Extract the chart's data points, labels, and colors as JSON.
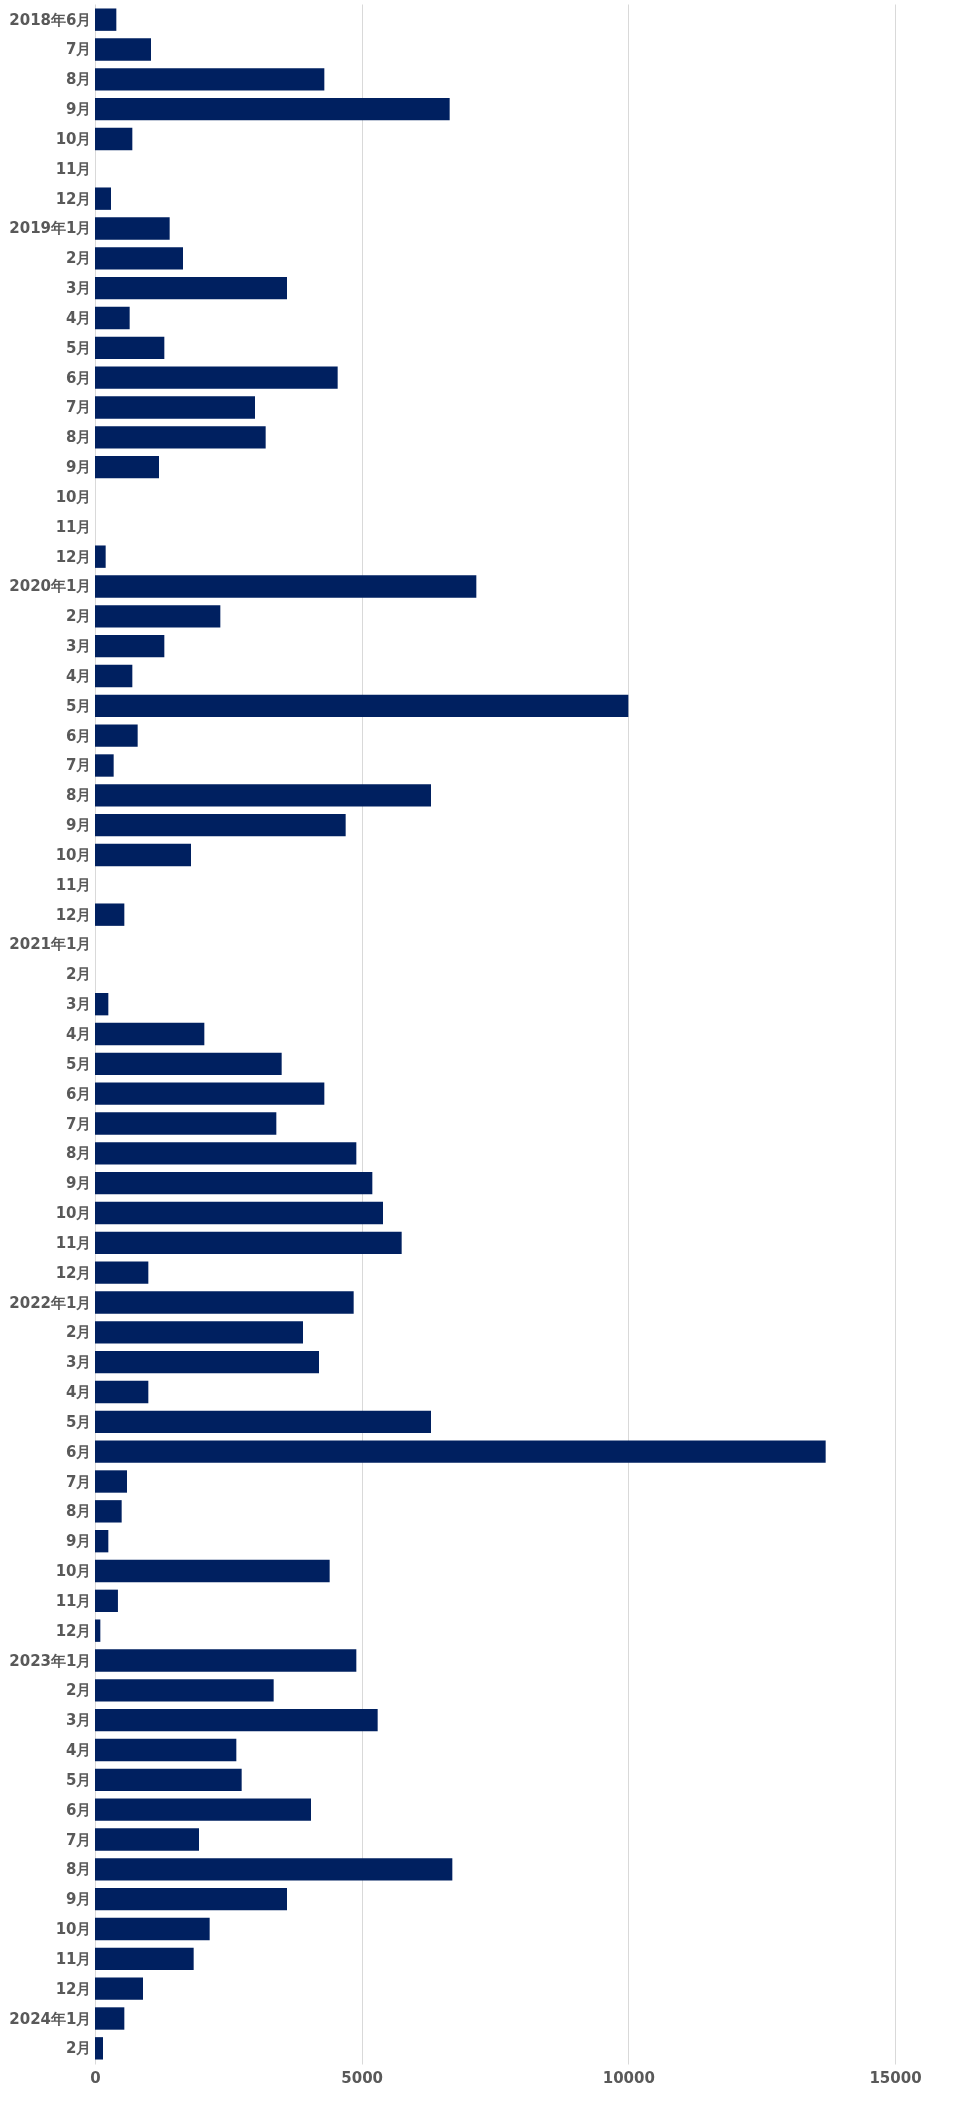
{
  "chart_data": {
    "type": "bar",
    "orientation": "horizontal",
    "categories": [
      "2018年6月",
      "7月",
      "8月",
      "9月",
      "10月",
      "11月",
      "12月",
      "2019年1月",
      "2月",
      "3月",
      "4月",
      "5月",
      "6月",
      "7月",
      "8月",
      "9月",
      "10月",
      "11月",
      "12月",
      "2020年1月",
      "2月",
      "3月",
      "4月",
      "5月",
      "6月",
      "7月",
      "8月",
      "9月",
      "10月",
      "11月",
      "12月",
      "2021年1月",
      "2月",
      "3月",
      "4月",
      "5月",
      "6月",
      "7月",
      "8月",
      "9月",
      "10月",
      "11月",
      "12月",
      "2022年1月",
      "2月",
      "3月",
      "4月",
      "5月",
      "6月",
      "7月",
      "8月",
      "9月",
      "10月",
      "11月",
      "12月",
      "2023年1月",
      "2月",
      "3月",
      "4月",
      "5月",
      "6月",
      "7月",
      "8月",
      "9月",
      "10月",
      "11月",
      "12月",
      "2024年1月",
      "2月"
    ],
    "values": [
      400,
      1050,
      4300,
      6650,
      700,
      0,
      300,
      1400,
      1650,
      3600,
      650,
      1300,
      4550,
      3000,
      3200,
      1200,
      0,
      0,
      200,
      7150,
      2350,
      1300,
      700,
      10000,
      800,
      350,
      6300,
      4700,
      1800,
      0,
      550,
      0,
      0,
      250,
      2050,
      3500,
      4300,
      3400,
      4900,
      5200,
      5400,
      5750,
      1000,
      4850,
      3900,
      4200,
      1000,
      6300,
      13700,
      600,
      500,
      250,
      4400,
      430,
      100,
      4900,
      3350,
      5300,
      2650,
      2750,
      4050,
      1950,
      6700,
      3600,
      2150,
      1850,
      900,
      550,
      150
    ],
    "color": "#002060",
    "xlim": [
      0,
      15000
    ],
    "xticks": [
      0,
      5000,
      10000,
      15000
    ],
    "grid": "x"
  }
}
